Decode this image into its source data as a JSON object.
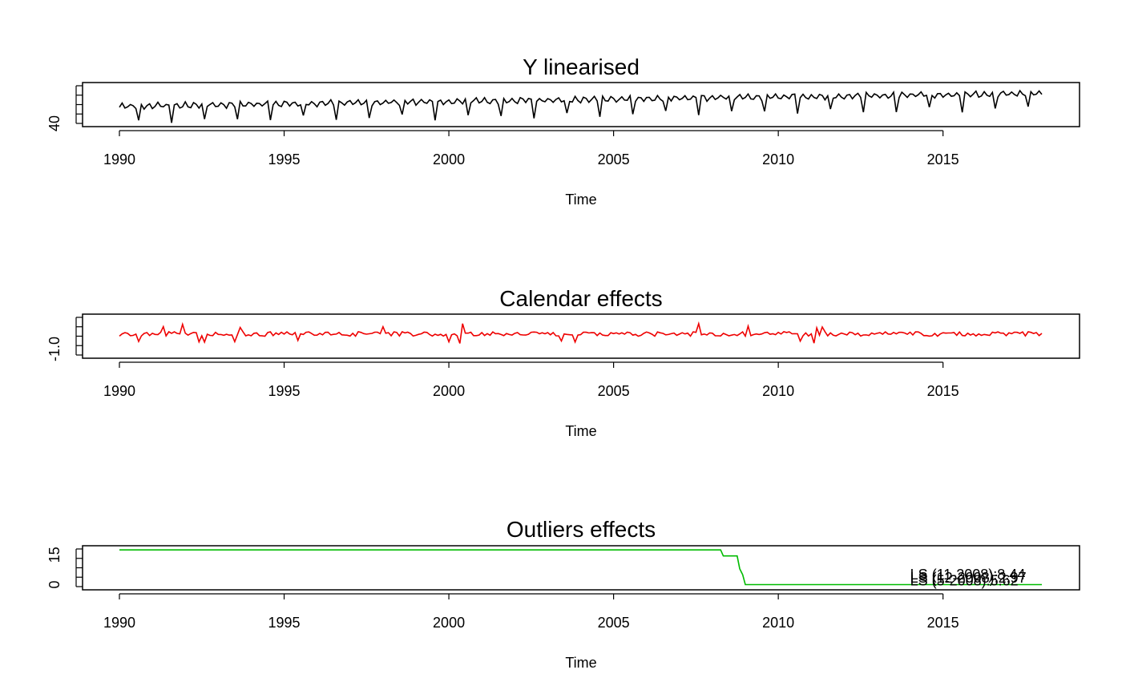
{
  "chart_data": [
    {
      "type": "line",
      "title": "Y linearised",
      "xlabel": "Time",
      "ylabel": "",
      "xlim": [
        1990,
        2018
      ],
      "ylim": [
        40,
        75
      ],
      "x_ticks": [
        "1990",
        "1995",
        "2000",
        "2005",
        "2010",
        "2015"
      ],
      "y_ticks": [
        "40"
      ],
      "series": [
        {
          "color": "#000000",
          "start": [
            1990,
            1
          ],
          "frequency": 12,
          "pattern": "seasonal_trend",
          "level_start": 56,
          "level_end": 68,
          "amp": 4,
          "dip": 14
        }
      ]
    },
    {
      "type": "line",
      "title": "Calendar effects",
      "xlabel": "Time",
      "ylabel": "",
      "xlim": [
        1990,
        2018
      ],
      "ylim": [
        -1.4,
        1.1
      ],
      "x_ticks": [
        "1990",
        "1995",
        "2000",
        "2005",
        "2010",
        "2015"
      ],
      "y_ticks": [
        "-1.0"
      ],
      "series": [
        {
          "color": "#ee0000",
          "start": [
            1990,
            1
          ],
          "frequency": 12,
          "pattern": "calendar",
          "amp": 0.3
        }
      ]
    },
    {
      "type": "line",
      "title": "Outliers effects",
      "xlabel": "Time",
      "ylabel": "",
      "xlim": [
        1990,
        2018
      ],
      "ylim": [
        -1,
        18
      ],
      "x_ticks": [
        "1990",
        "1995",
        "2000",
        "2005",
        "2010",
        "2015"
      ],
      "y_ticks": [
        "0",
        "15"
      ],
      "series": [
        {
          "color": "#00bb00",
          "x": [
            1990.0,
            2008.25,
            2008.33,
            2008.75,
            2008.83,
            2008.92,
            2009.0,
            2018.0
          ],
          "y": [
            17.5,
            17.5,
            14.5,
            14.5,
            8.0,
            5.0,
            0,
            0
          ]
        }
      ],
      "annotations": [
        {
          "text": "LS (11-2008):8.44",
          "x": 2014.0,
          "y": 5.0
        },
        {
          "text": "LS (12-2008):2.97",
          "x": 2014.0,
          "y": 3.5
        },
        {
          "text": "LS (5-2008):5.62",
          "x": 2014.0,
          "y": 2.0
        }
      ]
    }
  ]
}
